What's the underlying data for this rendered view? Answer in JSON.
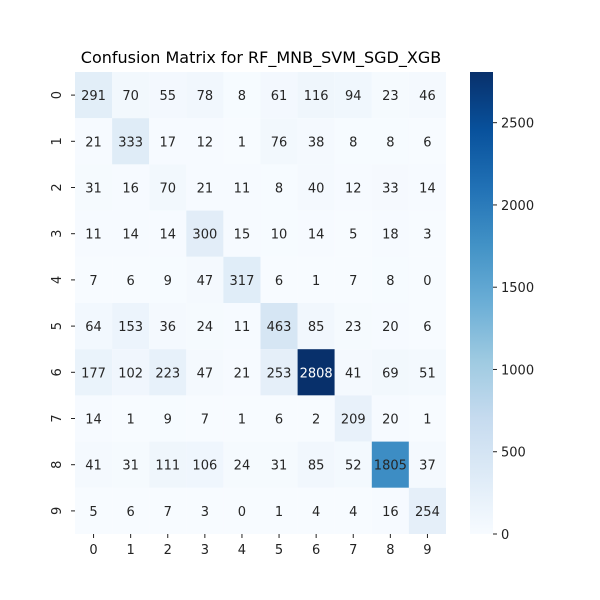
{
  "chart_data": {
    "type": "heatmap",
    "title": "Confusion Matrix for RF_MNB_SVM_SGD_XGB",
    "x_labels": [
      "0",
      "1",
      "2",
      "3",
      "4",
      "5",
      "6",
      "7",
      "8",
      "9"
    ],
    "y_labels": [
      "0",
      "1",
      "2",
      "3",
      "4",
      "5",
      "6",
      "7",
      "8",
      "9"
    ],
    "values": [
      [
        291,
        70,
        55,
        78,
        8,
        61,
        116,
        94,
        23,
        46
      ],
      [
        21,
        333,
        17,
        12,
        1,
        76,
        38,
        8,
        8,
        6
      ],
      [
        31,
        16,
        70,
        21,
        11,
        8,
        40,
        12,
        33,
        14
      ],
      [
        11,
        14,
        14,
        300,
        15,
        10,
        14,
        5,
        18,
        3
      ],
      [
        7,
        6,
        9,
        47,
        317,
        6,
        1,
        7,
        8,
        0
      ],
      [
        64,
        153,
        36,
        24,
        11,
        463,
        85,
        23,
        20,
        6
      ],
      [
        177,
        102,
        223,
        47,
        21,
        253,
        2808,
        41,
        69,
        51
      ],
      [
        14,
        1,
        9,
        7,
        1,
        6,
        2,
        209,
        20,
        1
      ],
      [
        41,
        31,
        111,
        106,
        24,
        31,
        85,
        52,
        1805,
        37
      ],
      [
        5,
        6,
        7,
        3,
        0,
        1,
        4,
        4,
        16,
        254
      ]
    ],
    "colormap": "Blues",
    "vmin": 0,
    "vmax": 2808,
    "colorbar_ticks": [
      0,
      500,
      1000,
      1500,
      2000,
      2500
    ]
  }
}
